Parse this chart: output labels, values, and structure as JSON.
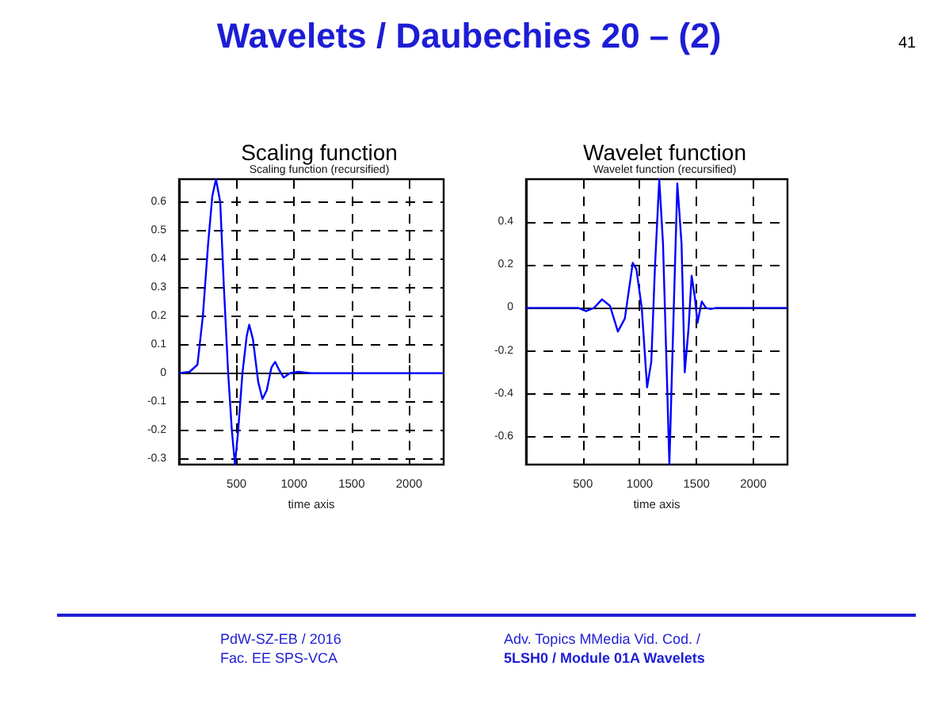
{
  "chart_data": [
    {
      "type": "line",
      "title": "Scaling function",
      "subtitle": "Scaling function (recursified)",
      "xlabel": "time axis",
      "xlim": [
        0,
        2300
      ],
      "xticks": [
        500,
        1000,
        1500,
        2000
      ],
      "ylim": [
        -0.32,
        0.68
      ],
      "yticks": [
        -0.3,
        -0.2,
        -0.1,
        0,
        0.1,
        0.2,
        0.3,
        0.4,
        0.5,
        0.6
      ],
      "grid": true,
      "marker": "none",
      "annotations": [
        "Wavelets / Daubechies 20 – (2)",
        "41",
        "PdW-SZ-EB / 2016",
        "Fac. EE  SPS-VCA",
        "Adv. Topics MMedia Vid. Cod. /",
        "5LSH0 / Module 01A Wavelets"
      ],
      "series": [
        {
          "color": "#0000ff",
          "x": [
            0,
            92,
            160,
            207,
            252,
            289,
            321,
            358,
            390,
            427,
            459,
            486,
            514,
            551,
            588,
            610,
            642,
            688,
            725,
            762,
            803,
            835,
            872,
            909,
            964,
            1033,
            1147,
            2300
          ],
          "values": [
            0,
            0.005,
            0.03,
            0.2,
            0.45,
            0.62,
            0.68,
            0.6,
            0.3,
            0,
            -0.2,
            -0.32,
            -0.2,
            0,
            0.13,
            0.17,
            0.12,
            -0.03,
            -0.09,
            -0.06,
            0.02,
            0.04,
            0.01,
            -0.015,
            0,
            0.005,
            0,
            0
          ]
        }
      ]
    },
    {
      "type": "line",
      "title": "Wavelet function",
      "subtitle": "Wavelet function (recursified)",
      "xlabel": "time axis",
      "xlim": [
        0,
        2300
      ],
      "xticks": [
        500,
        1000,
        1500,
        2000
      ],
      "ylim": [
        -0.73,
        0.6
      ],
      "yticks": [
        -0.6,
        -0.4,
        -0.2,
        0,
        0.2,
        0.4
      ],
      "grid": true,
      "marker": "none",
      "series": [
        {
          "color": "#0000ff",
          "x": [
            0,
            458,
            528,
            598,
            668,
            738,
            808,
            869,
            939,
            971,
            1018,
            1065,
            1102,
            1135,
            1172,
            1205,
            1238,
            1261,
            1289,
            1331,
            1368,
            1396,
            1429,
            1457,
            1485,
            1508,
            1546,
            1583,
            1625,
            1672,
            2300
          ],
          "values": [
            0,
            0,
            -0.015,
            0,
            0.04,
            0.01,
            -0.11,
            -0.05,
            0.21,
            0.18,
            0,
            -0.37,
            -0.25,
            0.2,
            0.6,
            0.3,
            -0.3,
            -0.73,
            -0.2,
            0.58,
            0.3,
            -0.3,
            -0.1,
            0.15,
            0.05,
            -0.07,
            0.03,
            0,
            -0.005,
            0,
            0
          ]
        }
      ]
    }
  ]
}
